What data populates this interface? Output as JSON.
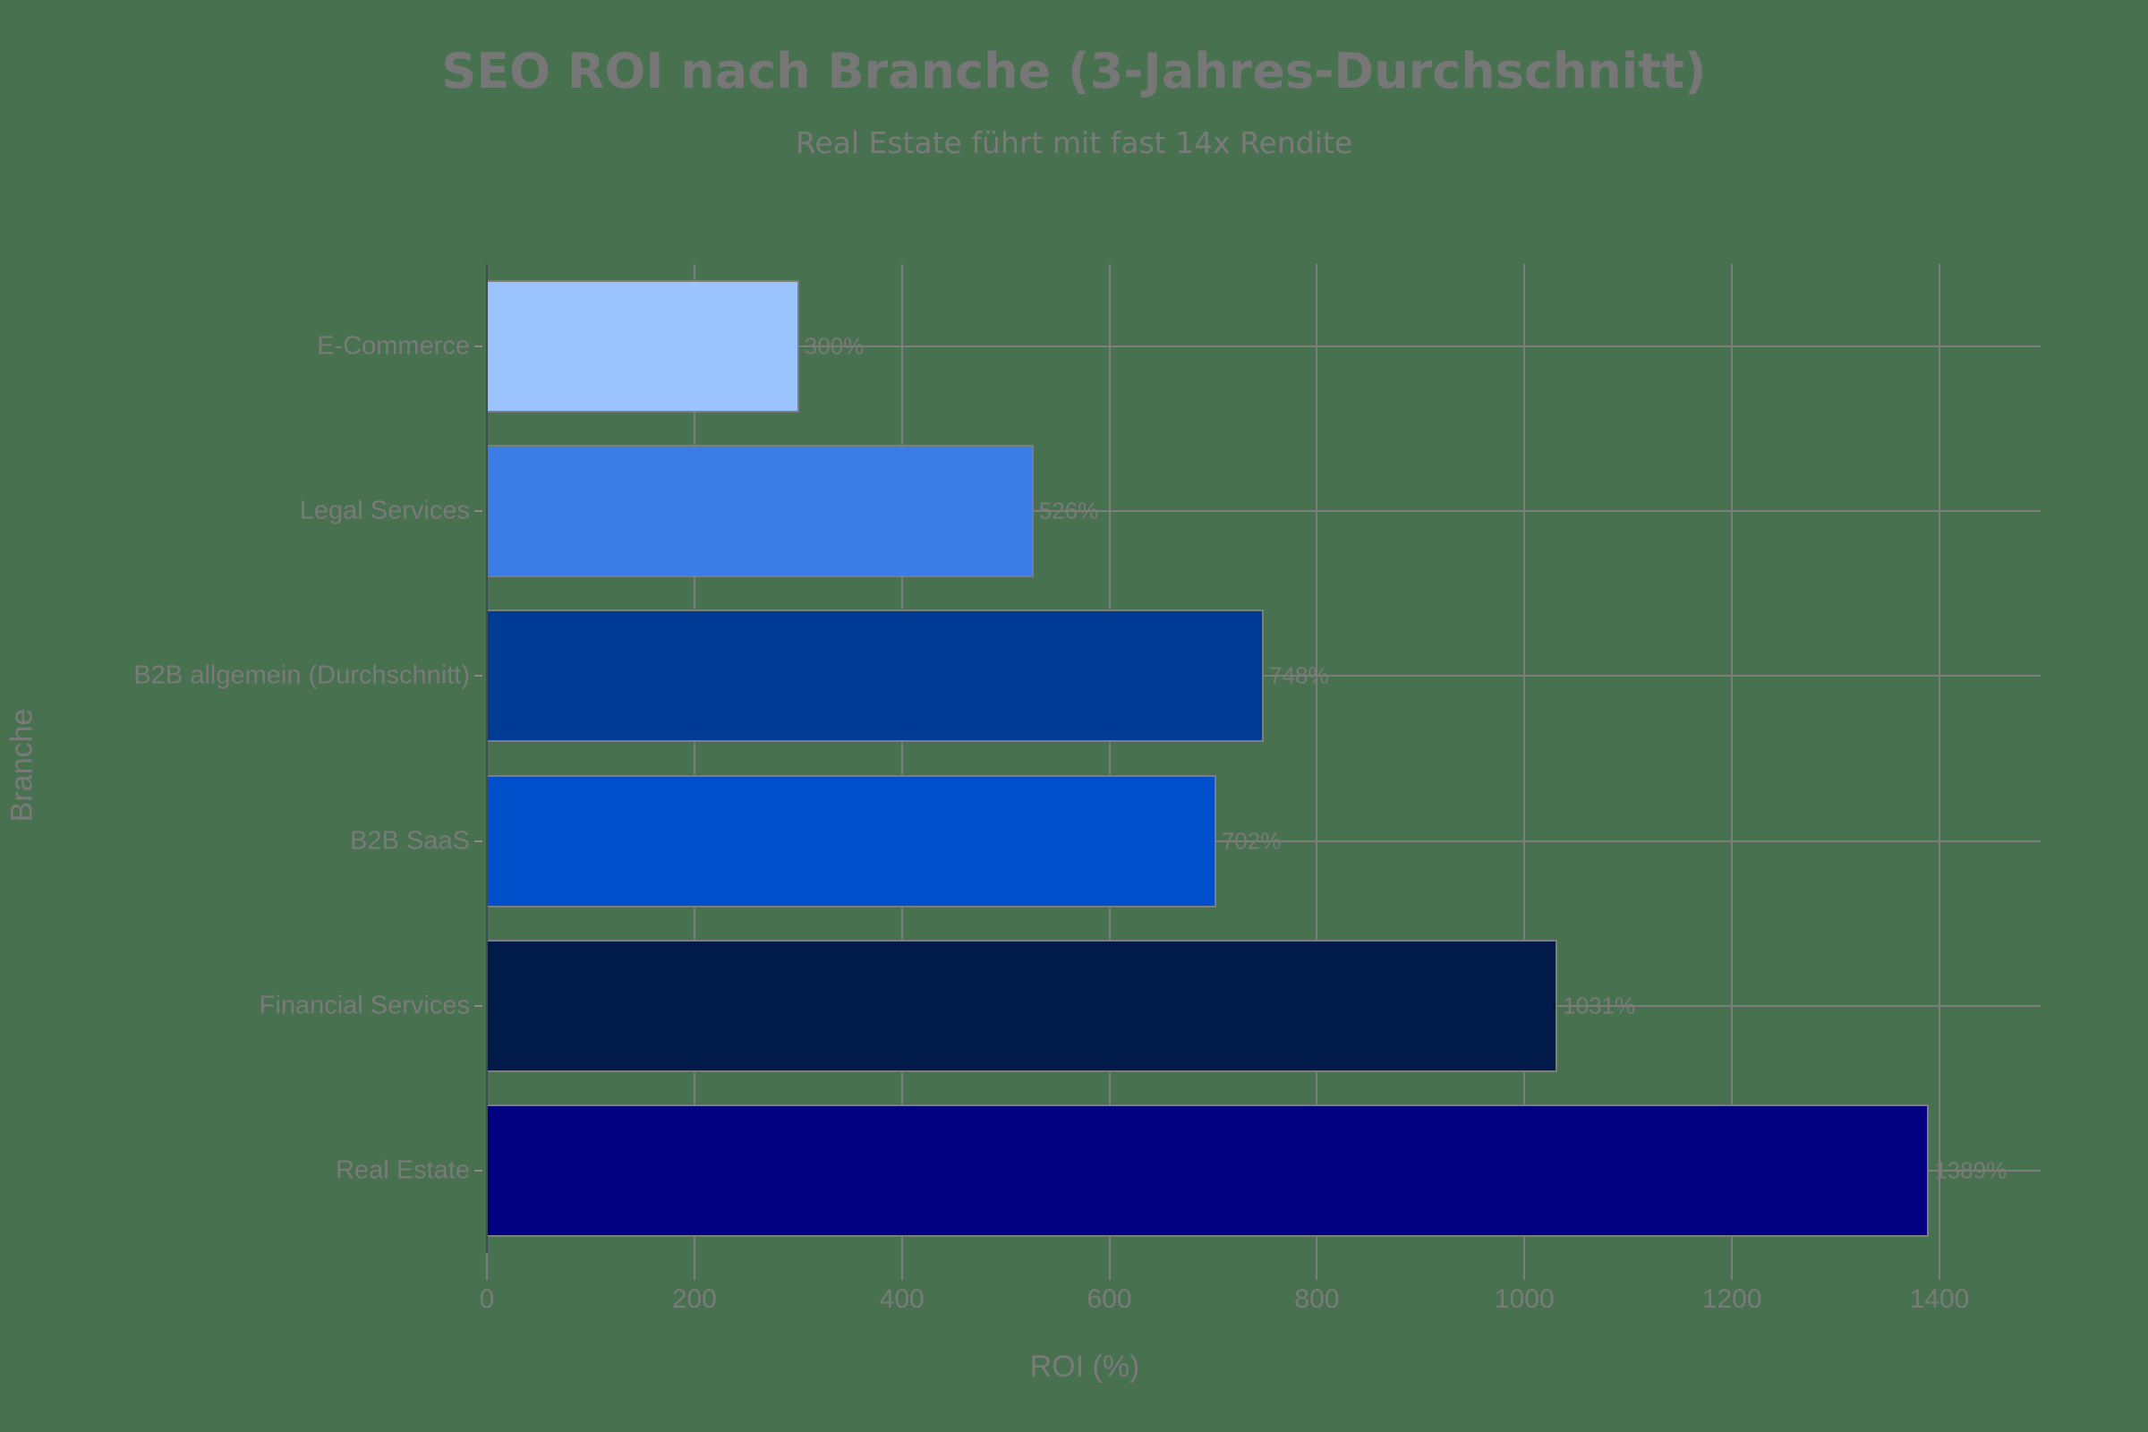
{
  "chart_data": {
    "type": "bar",
    "orientation": "horizontal",
    "title": "SEO ROI nach Branche (3-Jahres-Durchschnitt)",
    "subtitle": "Real Estate führt mit fast 14x Rendite",
    "xlabel": "ROI (%)",
    "ylabel": "Branche",
    "xlim": [
      0,
      1500
    ],
    "xticks": [
      0,
      200,
      400,
      600,
      800,
      1000,
      1200,
      1400
    ],
    "grid": true,
    "categories": [
      "E-Commerce",
      "Legal Services",
      "B2B allgemein (Durchschnitt)",
      "B2B SaaS",
      "Financial Services",
      "Real Estate"
    ],
    "values": [
      300,
      526,
      748,
      702,
      1031,
      1389
    ],
    "labels": [
      "300%",
      "526%",
      "748%",
      "702%",
      "1031%",
      "1389%"
    ],
    "colors": [
      "#9bc4ff",
      "#3b7de6",
      "#003b96",
      "#0050cc",
      "#001a4a",
      "#000080"
    ]
  },
  "background": "#48714f"
}
